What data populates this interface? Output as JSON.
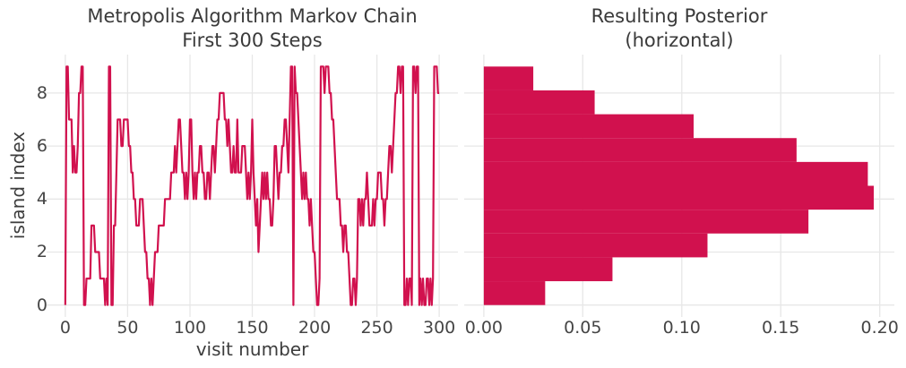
{
  "colors": {
    "accent": "#d1114e",
    "grid": "#e7e7e7",
    "title_text": "#3a3a3a",
    "tick_text": "#454545",
    "label_text": "#3d3d3d",
    "background": "#ffffff"
  },
  "chart_data": [
    {
      "type": "line",
      "title_lines": [
        "Metropolis Algorithm Markov Chain",
        "First 300 Steps"
      ],
      "title": "Metropolis Algorithm Markov Chain\nFirst 300 Steps",
      "xlabel": "visit number",
      "ylabel": "island index",
      "xlim": [
        -15,
        315
      ],
      "ylim": [
        -0.45,
        9.45
      ],
      "xticks": [
        0,
        50,
        100,
        150,
        200,
        250,
        300
      ],
      "xtick_labels": [
        "0",
        "50",
        "100",
        "150",
        "200",
        "250",
        "300"
      ],
      "yticks": [
        0,
        2,
        4,
        6,
        8
      ],
      "ytick_labels": [
        "0",
        "2",
        "4",
        "6",
        "8"
      ],
      "grid": true,
      "legend": false,
      "x_start": 0,
      "x_step": 1,
      "values": [
        0,
        9,
        9,
        7,
        7,
        7,
        5,
        6,
        5,
        5,
        6,
        8,
        8,
        9,
        9,
        0,
        0,
        1,
        1,
        1,
        1,
        3,
        3,
        3,
        2,
        2,
        2,
        2,
        1,
        1,
        1,
        1,
        0,
        1,
        0,
        9,
        9,
        0,
        0,
        3,
        3,
        5,
        7,
        7,
        7,
        6,
        6,
        7,
        7,
        7,
        7,
        6,
        6,
        5,
        5,
        4,
        4,
        3,
        3,
        3,
        4,
        4,
        4,
        3,
        2,
        2,
        1,
        1,
        0,
        1,
        0,
        1,
        2,
        2,
        2,
        3,
        3,
        3,
        3,
        3,
        4,
        4,
        4,
        4,
        4,
        5,
        5,
        5,
        6,
        5,
        6,
        7,
        7,
        6,
        5,
        5,
        4,
        5,
        4,
        5,
        7,
        7,
        5,
        4,
        5,
        4,
        5,
        5,
        6,
        6,
        5,
        5,
        4,
        4,
        5,
        5,
        4,
        5,
        6,
        6,
        5,
        6,
        7,
        7,
        8,
        8,
        8,
        8,
        7,
        7,
        6,
        7,
        6,
        5,
        5,
        6,
        5,
        5,
        7,
        5,
        5,
        5,
        6,
        6,
        6,
        5,
        4,
        5,
        4,
        5,
        7,
        5,
        4,
        3,
        4,
        2,
        3,
        4,
        5,
        4,
        5,
        4,
        5,
        4,
        4,
        3,
        3,
        4,
        6,
        6,
        5,
        4,
        5,
        5,
        6,
        6,
        7,
        7,
        6,
        5,
        7,
        9,
        9,
        0,
        9,
        8,
        8,
        7,
        6,
        5,
        4,
        5,
        4,
        5,
        4,
        4,
        3,
        4,
        3,
        2,
        2,
        1,
        0,
        0,
        1,
        9,
        9,
        9,
        8,
        9,
        9,
        9,
        8,
        8,
        7,
        7,
        6,
        5,
        4,
        4,
        4,
        3,
        3,
        2,
        3,
        3,
        2,
        2,
        1,
        0,
        0,
        1,
        1,
        0,
        1,
        4,
        4,
        3,
        4,
        3,
        4,
        4,
        5,
        4,
        3,
        3,
        3,
        4,
        3,
        4,
        4,
        5,
        5,
        5,
        4,
        4,
        3,
        4,
        4,
        5,
        6,
        6,
        5,
        6,
        7,
        8,
        8,
        9,
        9,
        8,
        9,
        9,
        0,
        0,
        1,
        0,
        1,
        1,
        0,
        9,
        9,
        8,
        9,
        9,
        0,
        1,
        0,
        1,
        0,
        0,
        1,
        1,
        0,
        1,
        0,
        1,
        9,
        9,
        9,
        8,
        8
      ]
    },
    {
      "type": "bar",
      "orientation": "horizontal",
      "title_lines": [
        "Resulting Posterior",
        "(horizontal)"
      ],
      "title": "Resulting Posterior\n(horizontal)",
      "xlabel": "",
      "ylabel": "",
      "categories": [
        0,
        1,
        2,
        3,
        4,
        5,
        6,
        7,
        8,
        9
      ],
      "values": [
        0.031,
        0.065,
        0.113,
        0.164,
        0.197,
        0.194,
        0.158,
        0.106,
        0.056,
        0.025
      ],
      "bin_edges": [
        0,
        0.9,
        1.8,
        2.7,
        3.6,
        4.5,
        5.4,
        6.3,
        7.2,
        8.1,
        9.0
      ],
      "xlim": [
        -0.0099,
        0.2074
      ],
      "ylim": [
        -0.45,
        9.45
      ],
      "xticks": [
        0.0,
        0.05,
        0.1,
        0.15,
        0.2
      ],
      "xtick_labels": [
        "0.00",
        "0.05",
        "0.10",
        "0.15",
        "0.20"
      ],
      "yticks": [
        0,
        2,
        4,
        6,
        8
      ],
      "ytick_labels": [],
      "grid": true,
      "legend": false
    }
  ]
}
